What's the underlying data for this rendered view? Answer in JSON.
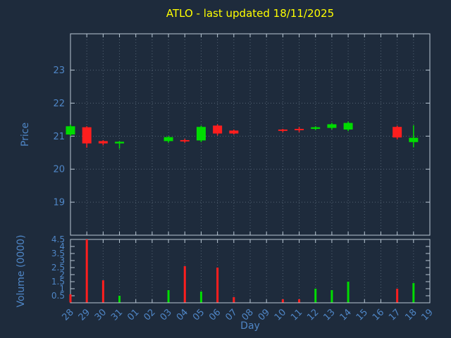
{
  "colors": {
    "background": "#1e2b3c",
    "title": "#ffff00",
    "label": "#4f86c6",
    "axis": "#b9c7d4",
    "grid": "#7f8fa0",
    "up": "#00dc00",
    "down": "#ff1e1e"
  },
  "chart_data": {
    "type": "candlestick_with_volume",
    "title": "ATLO - last updated 18/11/2025",
    "xlabel": "Day",
    "ylabel_price": "Price",
    "ylabel_volume": "Volume (0000)",
    "x": [
      "28",
      "29",
      "30",
      "31",
      "01",
      "02",
      "03",
      "04",
      "05",
      "06",
      "07",
      "08",
      "09",
      "10",
      "11",
      "12",
      "13",
      "14",
      "15",
      "16",
      "17",
      "18",
      "19"
    ],
    "price_axis": {
      "ticks": [
        "19",
        "20",
        "21",
        "22",
        "23"
      ],
      "lim": [
        18.0,
        24.1
      ]
    },
    "volume_axis": {
      "ticks": [
        "0.5",
        "1",
        "1.5",
        "2",
        "2.5",
        "3",
        "3.5",
        "4",
        "4.5"
      ],
      "lim": [
        0,
        4.5
      ]
    },
    "candles": [
      {
        "day": "28",
        "open": 21.05,
        "high": 21.35,
        "low": 21.0,
        "close": 21.3
      },
      {
        "day": "29",
        "open": 21.27,
        "high": 21.3,
        "low": 20.65,
        "close": 20.78
      },
      {
        "day": "30",
        "open": 20.85,
        "high": 20.88,
        "low": 20.72,
        "close": 20.78
      },
      {
        "day": "31",
        "open": 20.78,
        "high": 20.85,
        "low": 20.62,
        "close": 20.83
      },
      {
        "day": "03",
        "open": 20.85,
        "high": 21.0,
        "low": 20.8,
        "close": 20.97
      },
      {
        "day": "04",
        "open": 20.88,
        "high": 20.92,
        "low": 20.8,
        "close": 20.84
      },
      {
        "day": "05",
        "open": 20.87,
        "high": 21.32,
        "low": 20.82,
        "close": 21.28
      },
      {
        "day": "06",
        "open": 21.32,
        "high": 21.36,
        "low": 21.02,
        "close": 21.08
      },
      {
        "day": "07",
        "open": 21.17,
        "high": 21.2,
        "low": 21.05,
        "close": 21.08
      },
      {
        "day": "10",
        "open": 21.2,
        "high": 21.22,
        "low": 21.12,
        "close": 21.16
      },
      {
        "day": "11",
        "open": 21.22,
        "high": 21.28,
        "low": 21.12,
        "close": 21.18
      },
      {
        "day": "12",
        "open": 21.22,
        "high": 21.3,
        "low": 21.18,
        "close": 21.27
      },
      {
        "day": "13",
        "open": 21.25,
        "high": 21.4,
        "low": 21.2,
        "close": 21.36
      },
      {
        "day": "14",
        "open": 21.2,
        "high": 21.44,
        "low": 21.15,
        "close": 21.4
      },
      {
        "day": "17",
        "open": 21.28,
        "high": 21.32,
        "low": 20.9,
        "close": 20.96
      },
      {
        "day": "18",
        "open": 20.82,
        "high": 21.33,
        "low": 20.66,
        "close": 20.95
      }
    ],
    "volume": [
      {
        "day": "28",
        "value": 0.6,
        "direction": "down"
      },
      {
        "day": "29",
        "value": 4.5,
        "direction": "down"
      },
      {
        "day": "30",
        "value": 1.6,
        "direction": "down"
      },
      {
        "day": "31",
        "value": 0.5,
        "direction": "up"
      },
      {
        "day": "03",
        "value": 0.9,
        "direction": "up"
      },
      {
        "day": "04",
        "value": 2.6,
        "direction": "down"
      },
      {
        "day": "05",
        "value": 0.8,
        "direction": "up"
      },
      {
        "day": "06",
        "value": 2.5,
        "direction": "down"
      },
      {
        "day": "07",
        "value": 0.4,
        "direction": "down"
      },
      {
        "day": "10",
        "value": 0.25,
        "direction": "down"
      },
      {
        "day": "11",
        "value": 0.25,
        "direction": "down"
      },
      {
        "day": "12",
        "value": 1.0,
        "direction": "up"
      },
      {
        "day": "13",
        "value": 0.9,
        "direction": "up"
      },
      {
        "day": "14",
        "value": 1.5,
        "direction": "up"
      },
      {
        "day": "17",
        "value": 1.0,
        "direction": "down"
      },
      {
        "day": "18",
        "value": 1.4,
        "direction": "up"
      }
    ]
  }
}
